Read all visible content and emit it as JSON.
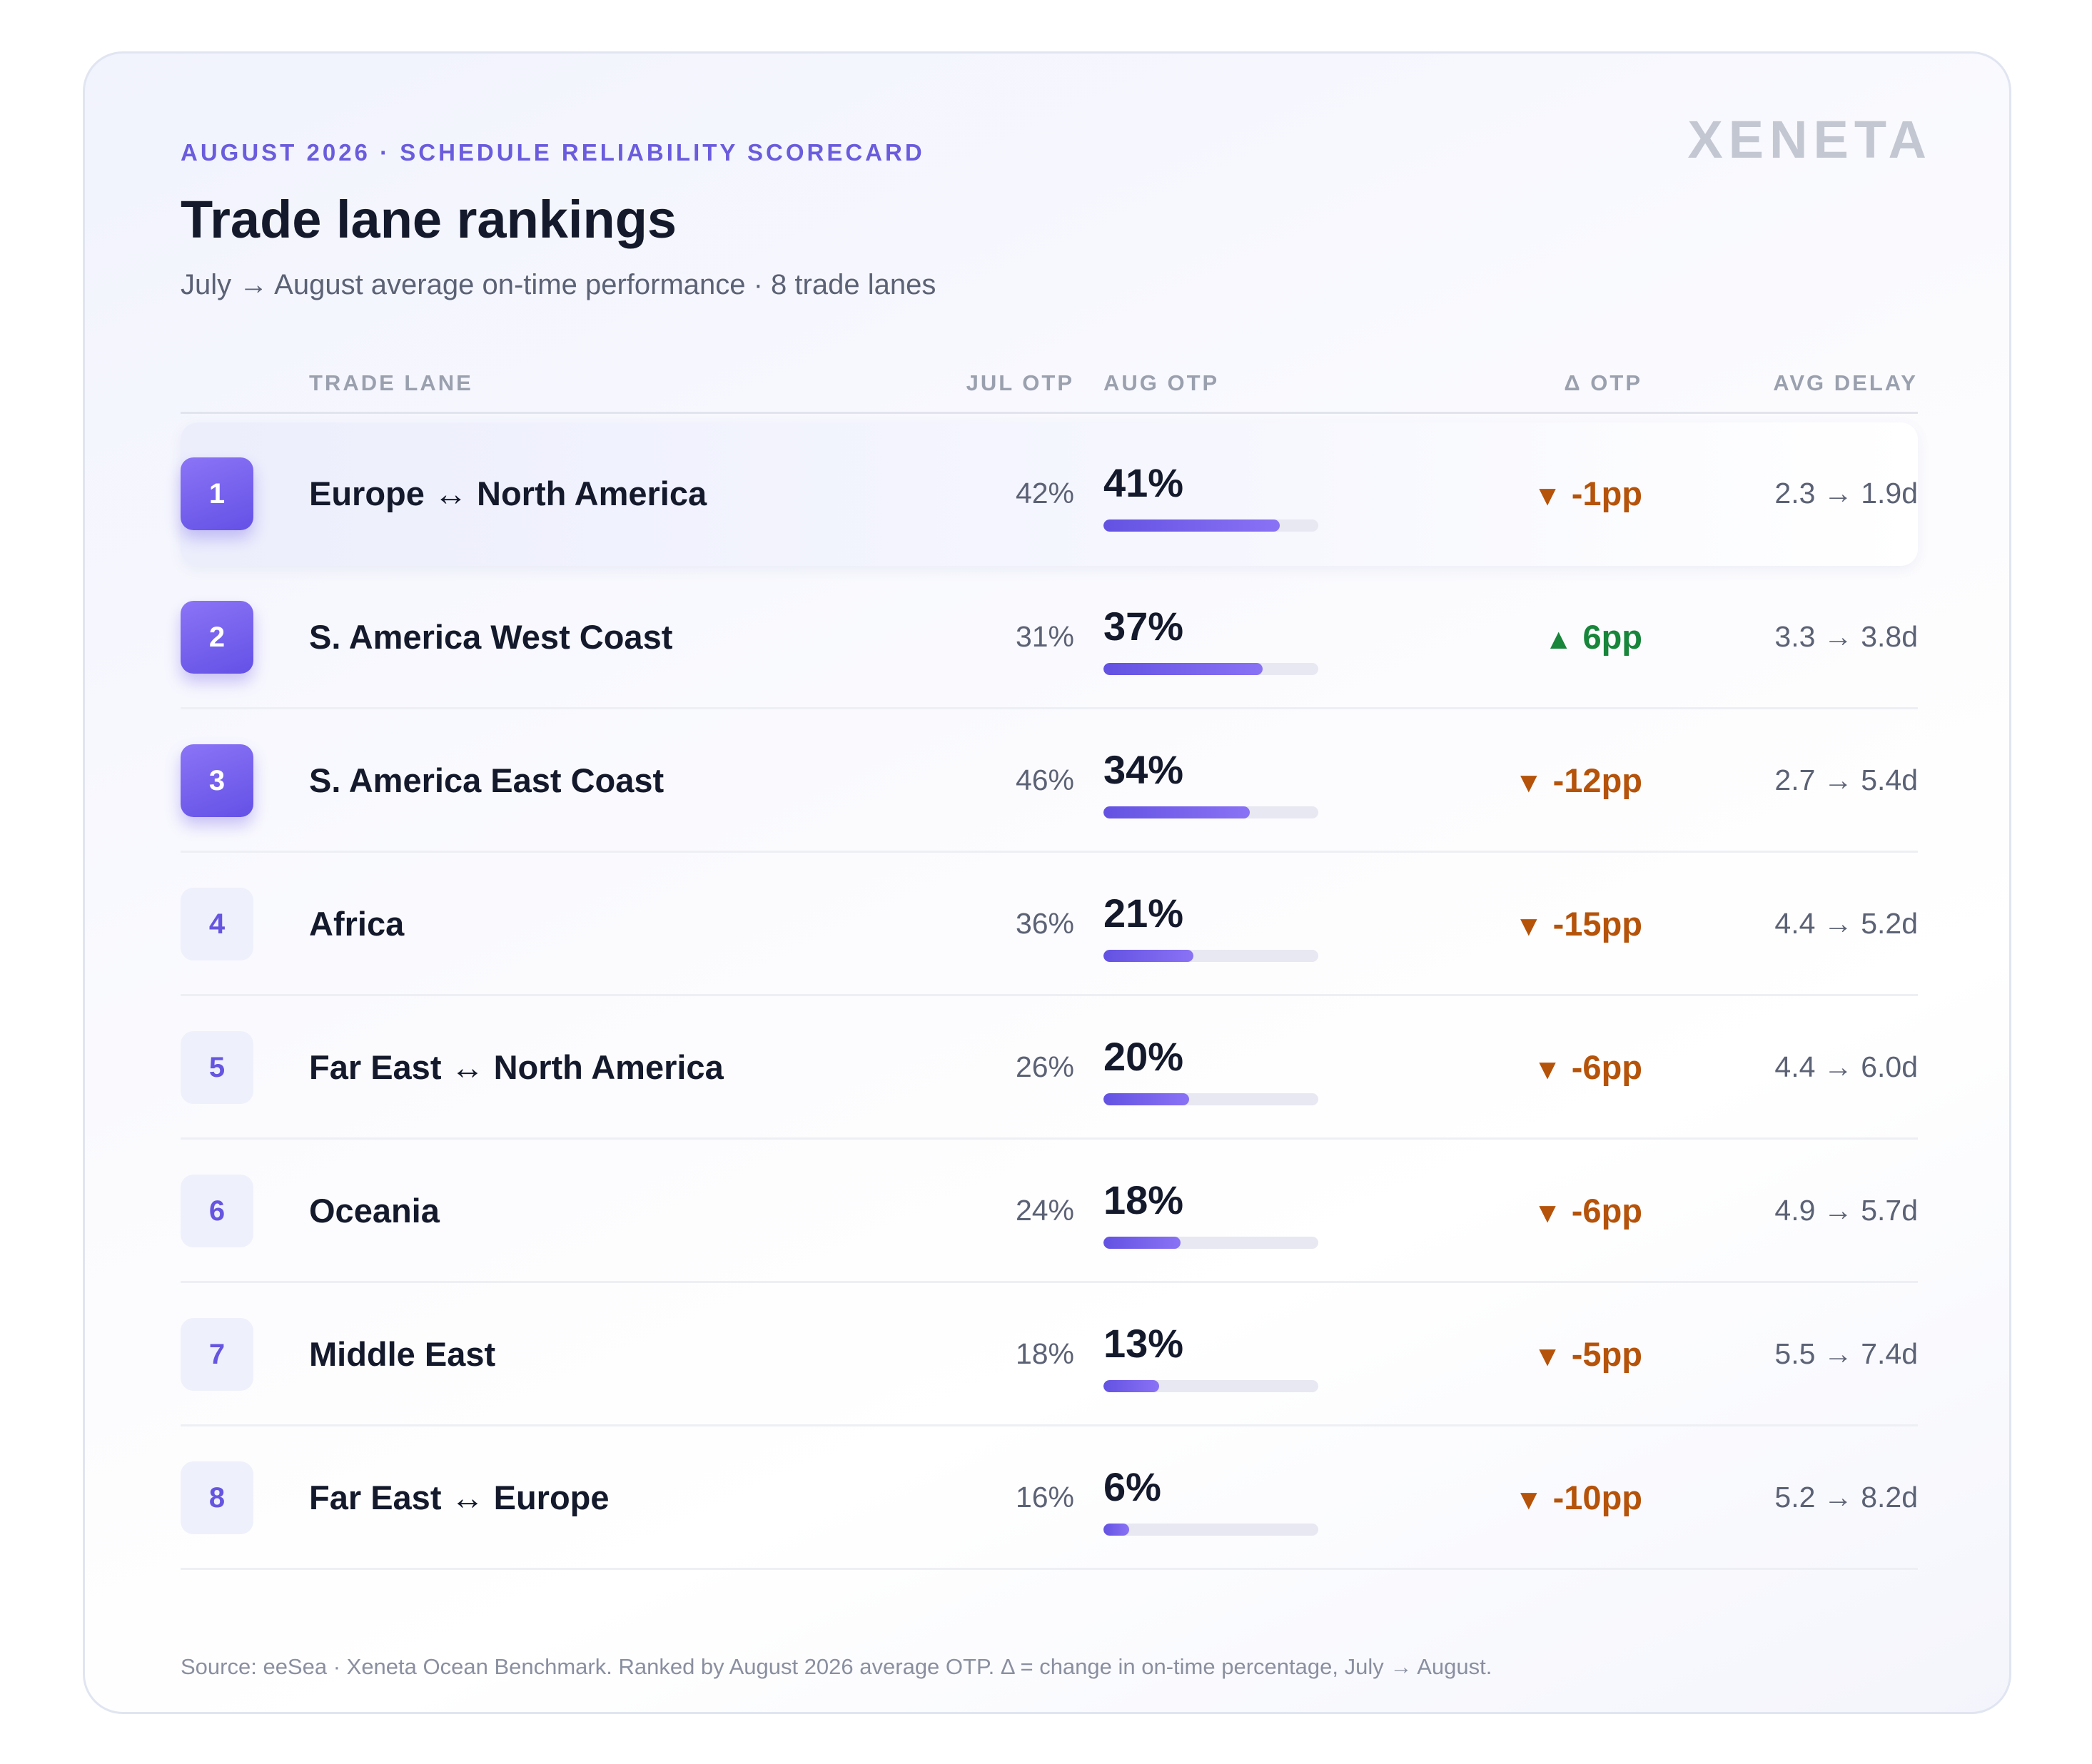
{
  "header": {
    "eyebrow": "AUGUST 2026 · SCHEDULE RELIABILITY SCORECARD",
    "title": "Trade lane rankings",
    "subtitle": "July → August average on-time performance · 8 trade lanes",
    "brand": "XENETA"
  },
  "columns": {
    "lane": "TRADE LANE",
    "jul": "JUL OTP",
    "aug": "AUG OTP",
    "delta": "Δ OTP",
    "delay": "AVG DELAY"
  },
  "colors": {
    "accent": "#6a5cdd",
    "negative": "#b5530a",
    "positive": "#17853a"
  },
  "chart_data": {
    "type": "table",
    "title": "Trade lane rankings",
    "subtitle": "July → August average on-time performance · 8 trade lanes",
    "rows": [
      {
        "rank": "1",
        "lane": "Europe ↔ North America",
        "jul": "42%",
        "aug": "41%",
        "aug_value": 41,
        "delta": "-1pp",
        "direction": "down",
        "delay": "2.3 → 1.9d"
      },
      {
        "rank": "2",
        "lane": "S. America West Coast",
        "jul": "31%",
        "aug": "37%",
        "aug_value": 37,
        "delta": "6pp",
        "direction": "up",
        "delay": "3.3 → 3.8d"
      },
      {
        "rank": "3",
        "lane": "S. America East Coast",
        "jul": "46%",
        "aug": "34%",
        "aug_value": 34,
        "delta": "-12pp",
        "direction": "down",
        "delay": "2.7 → 5.4d"
      },
      {
        "rank": "4",
        "lane": "Africa",
        "jul": "36%",
        "aug": "21%",
        "aug_value": 21,
        "delta": "-15pp",
        "direction": "down",
        "delay": "4.4 → 5.2d"
      },
      {
        "rank": "5",
        "lane": "Far East ↔ North America",
        "jul": "26%",
        "aug": "20%",
        "aug_value": 20,
        "delta": "-6pp",
        "direction": "down",
        "delay": "4.4 → 6.0d"
      },
      {
        "rank": "6",
        "lane": "Oceania",
        "jul": "24%",
        "aug": "18%",
        "aug_value": 18,
        "delta": "-6pp",
        "direction": "down",
        "delay": "4.9 → 5.7d"
      },
      {
        "rank": "7",
        "lane": "Middle East",
        "jul": "18%",
        "aug": "13%",
        "aug_value": 13,
        "delta": "-5pp",
        "direction": "down",
        "delay": "5.5 → 7.4d"
      },
      {
        "rank": "8",
        "lane": "Far East ↔ Europe",
        "jul": "16%",
        "aug": "6%",
        "aug_value": 6,
        "delta": "-10pp",
        "direction": "down",
        "delay": "5.2 → 8.2d"
      }
    ],
    "bar_max": 50
  },
  "footnote": "Source: eeSea · Xeneta Ocean Benchmark. Ranked by August 2026 average OTP. Δ = change in on-time percentage, July → August."
}
